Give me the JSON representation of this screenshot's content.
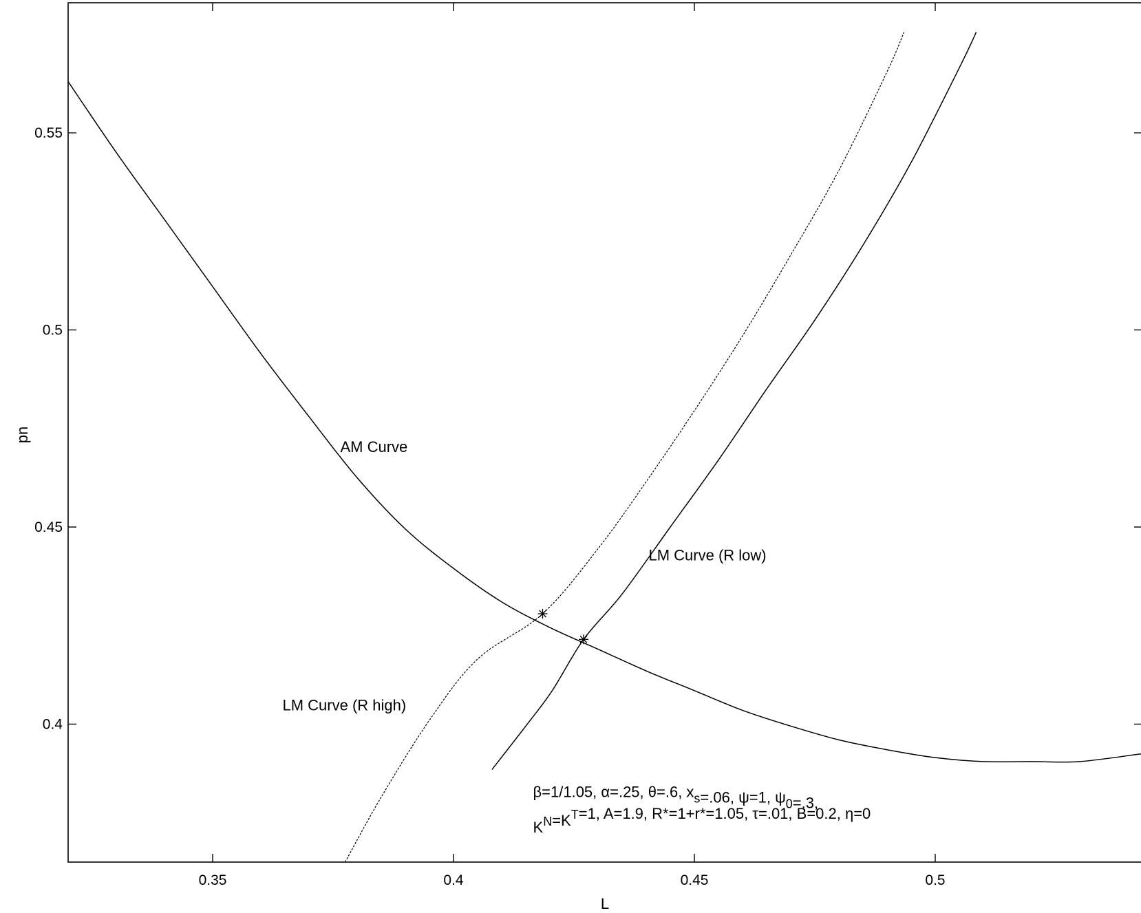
{
  "chart_data": {
    "type": "line",
    "title": "",
    "xlabel": "L",
    "ylabel": "pn",
    "xlim": [
      0.32,
      0.543
    ],
    "ylim": [
      0.365,
      0.583
    ],
    "x_ticks": [
      0.35,
      0.4,
      0.45,
      0.5
    ],
    "x_tick_labels": [
      "0.35",
      "0.4",
      "0.45",
      "0.5"
    ],
    "y_ticks": [
      0.4,
      0.45,
      0.5,
      0.55
    ],
    "y_tick_labels": [
      "0.4",
      "0.45",
      "0.5",
      "0.55"
    ],
    "grid": false,
    "series": [
      {
        "key": "am",
        "style": "solid",
        "color": "#000000",
        "x": [
          0.32,
          0.33,
          0.34,
          0.35,
          0.36,
          0.37,
          0.38,
          0.39,
          0.4,
          0.41,
          0.42,
          0.43,
          0.44,
          0.45,
          0.46,
          0.47,
          0.48,
          0.49,
          0.5,
          0.51,
          0.52,
          0.53,
          0.543
        ],
        "y": [
          0.563,
          0.545,
          0.528,
          0.511,
          0.494,
          0.478,
          0.4625,
          0.4495,
          0.4395,
          0.431,
          0.4245,
          0.419,
          0.4135,
          0.4085,
          0.4035,
          0.3995,
          0.396,
          0.3935,
          0.3915,
          0.3905,
          0.3905,
          0.3905,
          0.3925
        ]
      },
      {
        "key": "lm_high",
        "style": "dashed",
        "color": "#000000",
        "x": [
          0.3775,
          0.385,
          0.395,
          0.405,
          0.4185,
          0.43,
          0.44,
          0.45,
          0.46,
          0.47,
          0.48,
          0.49,
          0.4935
        ],
        "y": [
          0.365,
          0.3815,
          0.401,
          0.4165,
          0.428,
          0.4445,
          0.4615,
          0.4795,
          0.4985,
          0.519,
          0.5405,
          0.5655,
          0.5755
        ]
      },
      {
        "key": "lm_low",
        "style": "solid",
        "color": "#000000",
        "x": [
          0.408,
          0.415,
          0.4205,
          0.427,
          0.435,
          0.445,
          0.455,
          0.465,
          0.475,
          0.485,
          0.495,
          0.505,
          0.5085
        ],
        "y": [
          0.3885,
          0.3995,
          0.4085,
          0.4215,
          0.433,
          0.45,
          0.467,
          0.485,
          0.5025,
          0.5215,
          0.5425,
          0.5665,
          0.5755
        ]
      }
    ],
    "markers": [
      {
        "x": 0.4185,
        "y": 0.428,
        "symbol": "*"
      },
      {
        "x": 0.427,
        "y": 0.4215,
        "symbol": "*"
      }
    ],
    "annotations": [
      {
        "text": "AM Curve",
        "x": 0.3765,
        "y": 0.469
      },
      {
        "text": "LM Curve (R low)",
        "x": 0.4405,
        "y": 0.4415
      },
      {
        "text": "LM Curve (R high)",
        "x": 0.3645,
        "y": 0.4035
      }
    ],
    "parameters": {
      "line1": {
        "x": 0.4165,
        "y": 0.3815,
        "parts": [
          {
            "t": "β=1/1.05, α=.25, θ=.6, x"
          },
          {
            "t": "s",
            "sub": true
          },
          {
            "t": "=.06, ψ=1, ψ"
          },
          {
            "t": "0",
            "sub": true
          },
          {
            "t": "=.3,"
          }
        ]
      },
      "line2": {
        "x": 0.4165,
        "y": 0.3725,
        "parts": [
          {
            "t": "K"
          },
          {
            "t": "N",
            "sup": true
          },
          {
            "t": "=K"
          },
          {
            "t": "T",
            "sup": true
          },
          {
            "t": "=1, A=1.9, R*=1+r*=1.05, τ=.01, B=0.2, η=0"
          }
        ]
      }
    }
  }
}
